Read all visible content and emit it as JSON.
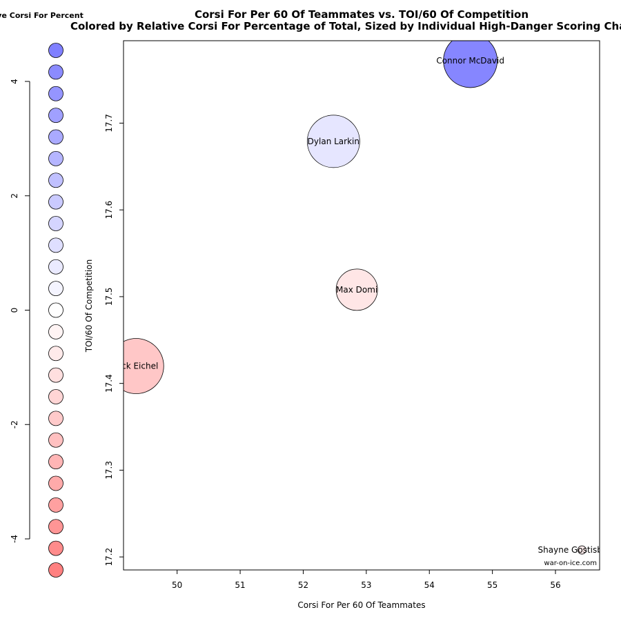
{
  "chart_data": {
    "type": "scatter",
    "title": "Corsi For Per 60 Of Teammates vs. TOI/60 Of Competition",
    "subtitle": "Colored by Relative Corsi For Percentage of Total, Sized by Individual High-Danger Scoring Chances",
    "xlabel": "Corsi For Per 60 Of Teammates",
    "ylabel": "TOI/60 Of Competition",
    "xlim": [
      49.15,
      56.7
    ],
    "ylim": [
      17.185,
      17.795
    ],
    "x_ticks": [
      "50",
      "51",
      "52",
      "53",
      "54",
      "55",
      "56"
    ],
    "y_ticks": [
      "17.2",
      "17.3",
      "17.4",
      "17.5",
      "17.6",
      "17.7"
    ],
    "points": [
      {
        "label": "Connor McDavid",
        "x": 54.65,
        "y": 17.772,
        "color_value": 4.3,
        "size": 39
      },
      {
        "label": "Dylan Larkin",
        "x": 52.48,
        "y": 17.679,
        "color_value": 0.9,
        "size": 38
      },
      {
        "label": "Max Domi",
        "x": 52.85,
        "y": 17.508,
        "color_value": -0.9,
        "size": 30
      },
      {
        "label": "Jack Eichel",
        "x": 49.35,
        "y": 17.42,
        "color_value": -2.0,
        "size": 40
      },
      {
        "label": "Shayne Gostisbehere",
        "x": 56.42,
        "y": 17.208,
        "color_value": -0.6,
        "size": 6
      }
    ],
    "legend": {
      "title": "Relative Corsi For Percent",
      "ticks": [
        "4",
        "2",
        "0",
        "-2",
        "-4"
      ],
      "tick_values": [
        4,
        2,
        0,
        -2,
        -4
      ],
      "steps": [
        4.5,
        4.125,
        3.75,
        3.375,
        3.0,
        2.625,
        2.25,
        1.875,
        1.5,
        1.125,
        0.75,
        0.375,
        0.0,
        -0.375,
        -0.75,
        -1.125,
        -1.5,
        -1.875,
        -2.25,
        -2.625,
        -3.0,
        -3.375,
        -3.75,
        -4.125,
        -4.5
      ],
      "range": [
        -4.5,
        4.5
      ],
      "high_color": "#8080ff",
      "low_color": "#ff8080",
      "mid_color": "#ffffff"
    },
    "watermark": "war-on-ice.com"
  }
}
